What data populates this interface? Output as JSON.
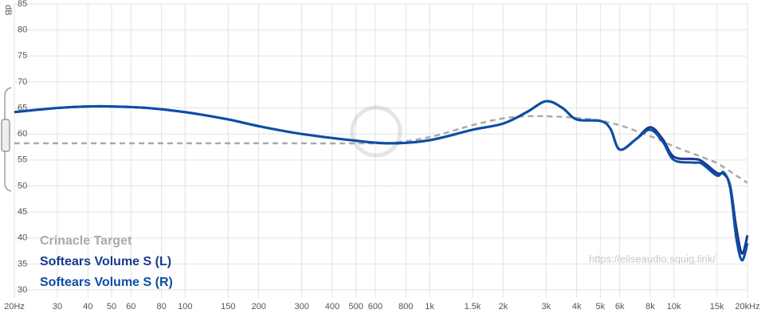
{
  "chart_data": {
    "type": "line",
    "y_label": "dB",
    "watermark": "https://eliseaudio.squig.link/",
    "log_x": true,
    "grid": true,
    "x": [
      20,
      30,
      40,
      50,
      70,
      100,
      150,
      200,
      300,
      500,
      700,
      1000,
      1500,
      2000,
      2500,
      3000,
      3500,
      4000,
      5000,
      5500,
      6000,
      7000,
      8000,
      9000,
      10000,
      12000,
      13000,
      15000,
      16000,
      17000,
      18000,
      19000,
      20000
    ],
    "series": [
      {
        "name": "Crinacle Target",
        "color": "#aaaaaa",
        "dashed": true,
        "values": [
          58.2,
          58.2,
          58.2,
          58.2,
          58.2,
          58.2,
          58.2,
          58.2,
          58.2,
          58.2,
          58.3,
          59.4,
          61.7,
          63,
          63.4,
          63.4,
          63.3,
          63.1,
          62.6,
          62.1,
          61.7,
          60.6,
          59.6,
          58.6,
          57.6,
          56.2,
          55.6,
          54.4,
          53.6,
          52.8,
          52,
          51.3,
          50.6
        ]
      },
      {
        "name": "Softears Volume S (L)",
        "color": "#1a3a8f",
        "values": [
          64.2,
          65,
          65.3,
          65.3,
          65,
          64.2,
          62.8,
          61.5,
          60,
          58.7,
          58.2,
          58.8,
          60.8,
          62,
          64.2,
          66.3,
          65,
          62.8,
          62.5,
          61,
          57,
          59,
          61.3,
          59,
          55.6,
          55.2,
          54.8,
          52.5,
          52.3,
          50,
          42,
          37,
          40.5
        ]
      },
      {
        "name": "Softears Volume S (R)",
        "color": "#0d4ea6",
        "values": [
          64.2,
          65,
          65.3,
          65.3,
          65,
          64.2,
          62.8,
          61.5,
          60,
          58.7,
          58.2,
          58.8,
          60.8,
          62,
          64.2,
          66.3,
          65,
          62.8,
          62.5,
          61,
          57,
          59,
          60.8,
          58.5,
          55,
          54.5,
          54.3,
          52,
          52.6,
          49.5,
          40,
          35.7,
          39
        ]
      }
    ],
    "xlim": [
      20,
      20000
    ],
    "xticks": [
      {
        "value": 20,
        "label": "20Hz"
      },
      30,
      40,
      50,
      60,
      80,
      100,
      150,
      200,
      300,
      400,
      500,
      600,
      800,
      {
        "value": 1000,
        "label": "1k"
      },
      {
        "value": 1500,
        "label": "1.5k"
      },
      {
        "value": 2000,
        "label": "2k"
      },
      {
        "value": 3000,
        "label": "3k"
      },
      {
        "value": 4000,
        "label": "4k"
      },
      {
        "value": 5000,
        "label": "5k"
      },
      {
        "value": 6000,
        "label": "6k"
      },
      {
        "value": 8000,
        "label": "8k"
      },
      {
        "value": 10000,
        "label": "10k"
      },
      {
        "value": 15000,
        "label": "15k"
      },
      {
        "value": 20000,
        "label": "20kHz"
      }
    ],
    "ylim": [
      30,
      85
    ],
    "yticks": [
      30,
      35,
      40,
      45,
      50,
      55,
      60,
      65,
      70,
      75,
      80,
      85
    ]
  }
}
